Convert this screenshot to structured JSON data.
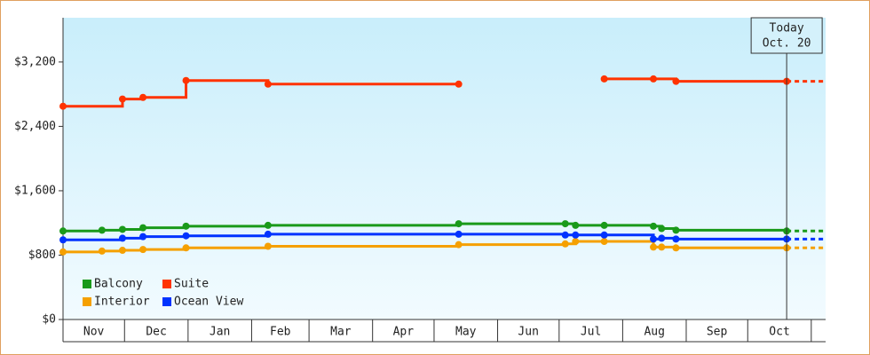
{
  "chart_data": {
    "type": "step-line",
    "xlim": [
      0,
      372
    ],
    "xticks": [
      {
        "value": 0,
        "label": "Nov"
      },
      {
        "value": 30,
        "label": "Dec"
      },
      {
        "value": 61,
        "label": "Jan"
      },
      {
        "value": 92,
        "label": "Feb"
      },
      {
        "value": 120,
        "label": "Mar"
      },
      {
        "value": 151,
        "label": "Apr"
      },
      {
        "value": 181,
        "label": "May"
      },
      {
        "value": 212,
        "label": "Jun"
      },
      {
        "value": 242,
        "label": "Jul"
      },
      {
        "value": 273,
        "label": "Aug"
      },
      {
        "value": 304,
        "label": "Sep"
      },
      {
        "value": 334,
        "label": "Oct"
      },
      {
        "value": 365,
        "label": null
      }
    ],
    "ylim": [
      0,
      3750
    ],
    "yticks": [
      {
        "value": 0,
        "label": "$0"
      },
      {
        "value": 800,
        "label": "$800"
      },
      {
        "value": 1600,
        "label": "$1,600"
      },
      {
        "value": 2400,
        "label": "$2,400"
      },
      {
        "value": 3200,
        "label": "$3,200"
      }
    ],
    "today": {
      "x": 353,
      "label": [
        "Today",
        "Oct. 20"
      ]
    },
    "series": [
      {
        "name": "Balcony",
        "color": "#1a9a1a",
        "x": [
          0,
          19,
          29,
          39,
          60,
          100,
          193,
          245,
          250,
          264,
          288,
          292,
          299,
          353
        ],
        "values": [
          1100,
          1110,
          1120,
          1140,
          1160,
          1170,
          1190,
          1190,
          1170,
          1170,
          1160,
          1130,
          1110,
          1100
        ]
      },
      {
        "name": "Suite",
        "color": "#ff3300",
        "x": [
          0,
          29,
          39,
          60,
          100,
          193,
          230,
          264,
          288,
          299,
          353
        ],
        "values": [
          2650,
          2740,
          2760,
          2970,
          2925,
          2925,
          null,
          2990,
          2990,
          2960,
          2960
        ]
      },
      {
        "name": "Interior",
        "color": "#f5a000",
        "x": [
          0,
          19,
          29,
          39,
          60,
          100,
          193,
          245,
          250,
          264,
          288,
          292,
          299,
          353
        ],
        "values": [
          840,
          850,
          860,
          870,
          890,
          910,
          930,
          940,
          970,
          970,
          900,
          900,
          890,
          890
        ]
      },
      {
        "name": "Ocean View",
        "color": "#0033ff",
        "x": [
          0,
          29,
          39,
          60,
          100,
          193,
          245,
          250,
          264,
          288,
          292,
          299,
          353
        ],
        "values": [
          990,
          1010,
          1030,
          1040,
          1060,
          1060,
          1050,
          1050,
          1050,
          1000,
          1010,
          1000,
          1000
        ]
      }
    ]
  }
}
